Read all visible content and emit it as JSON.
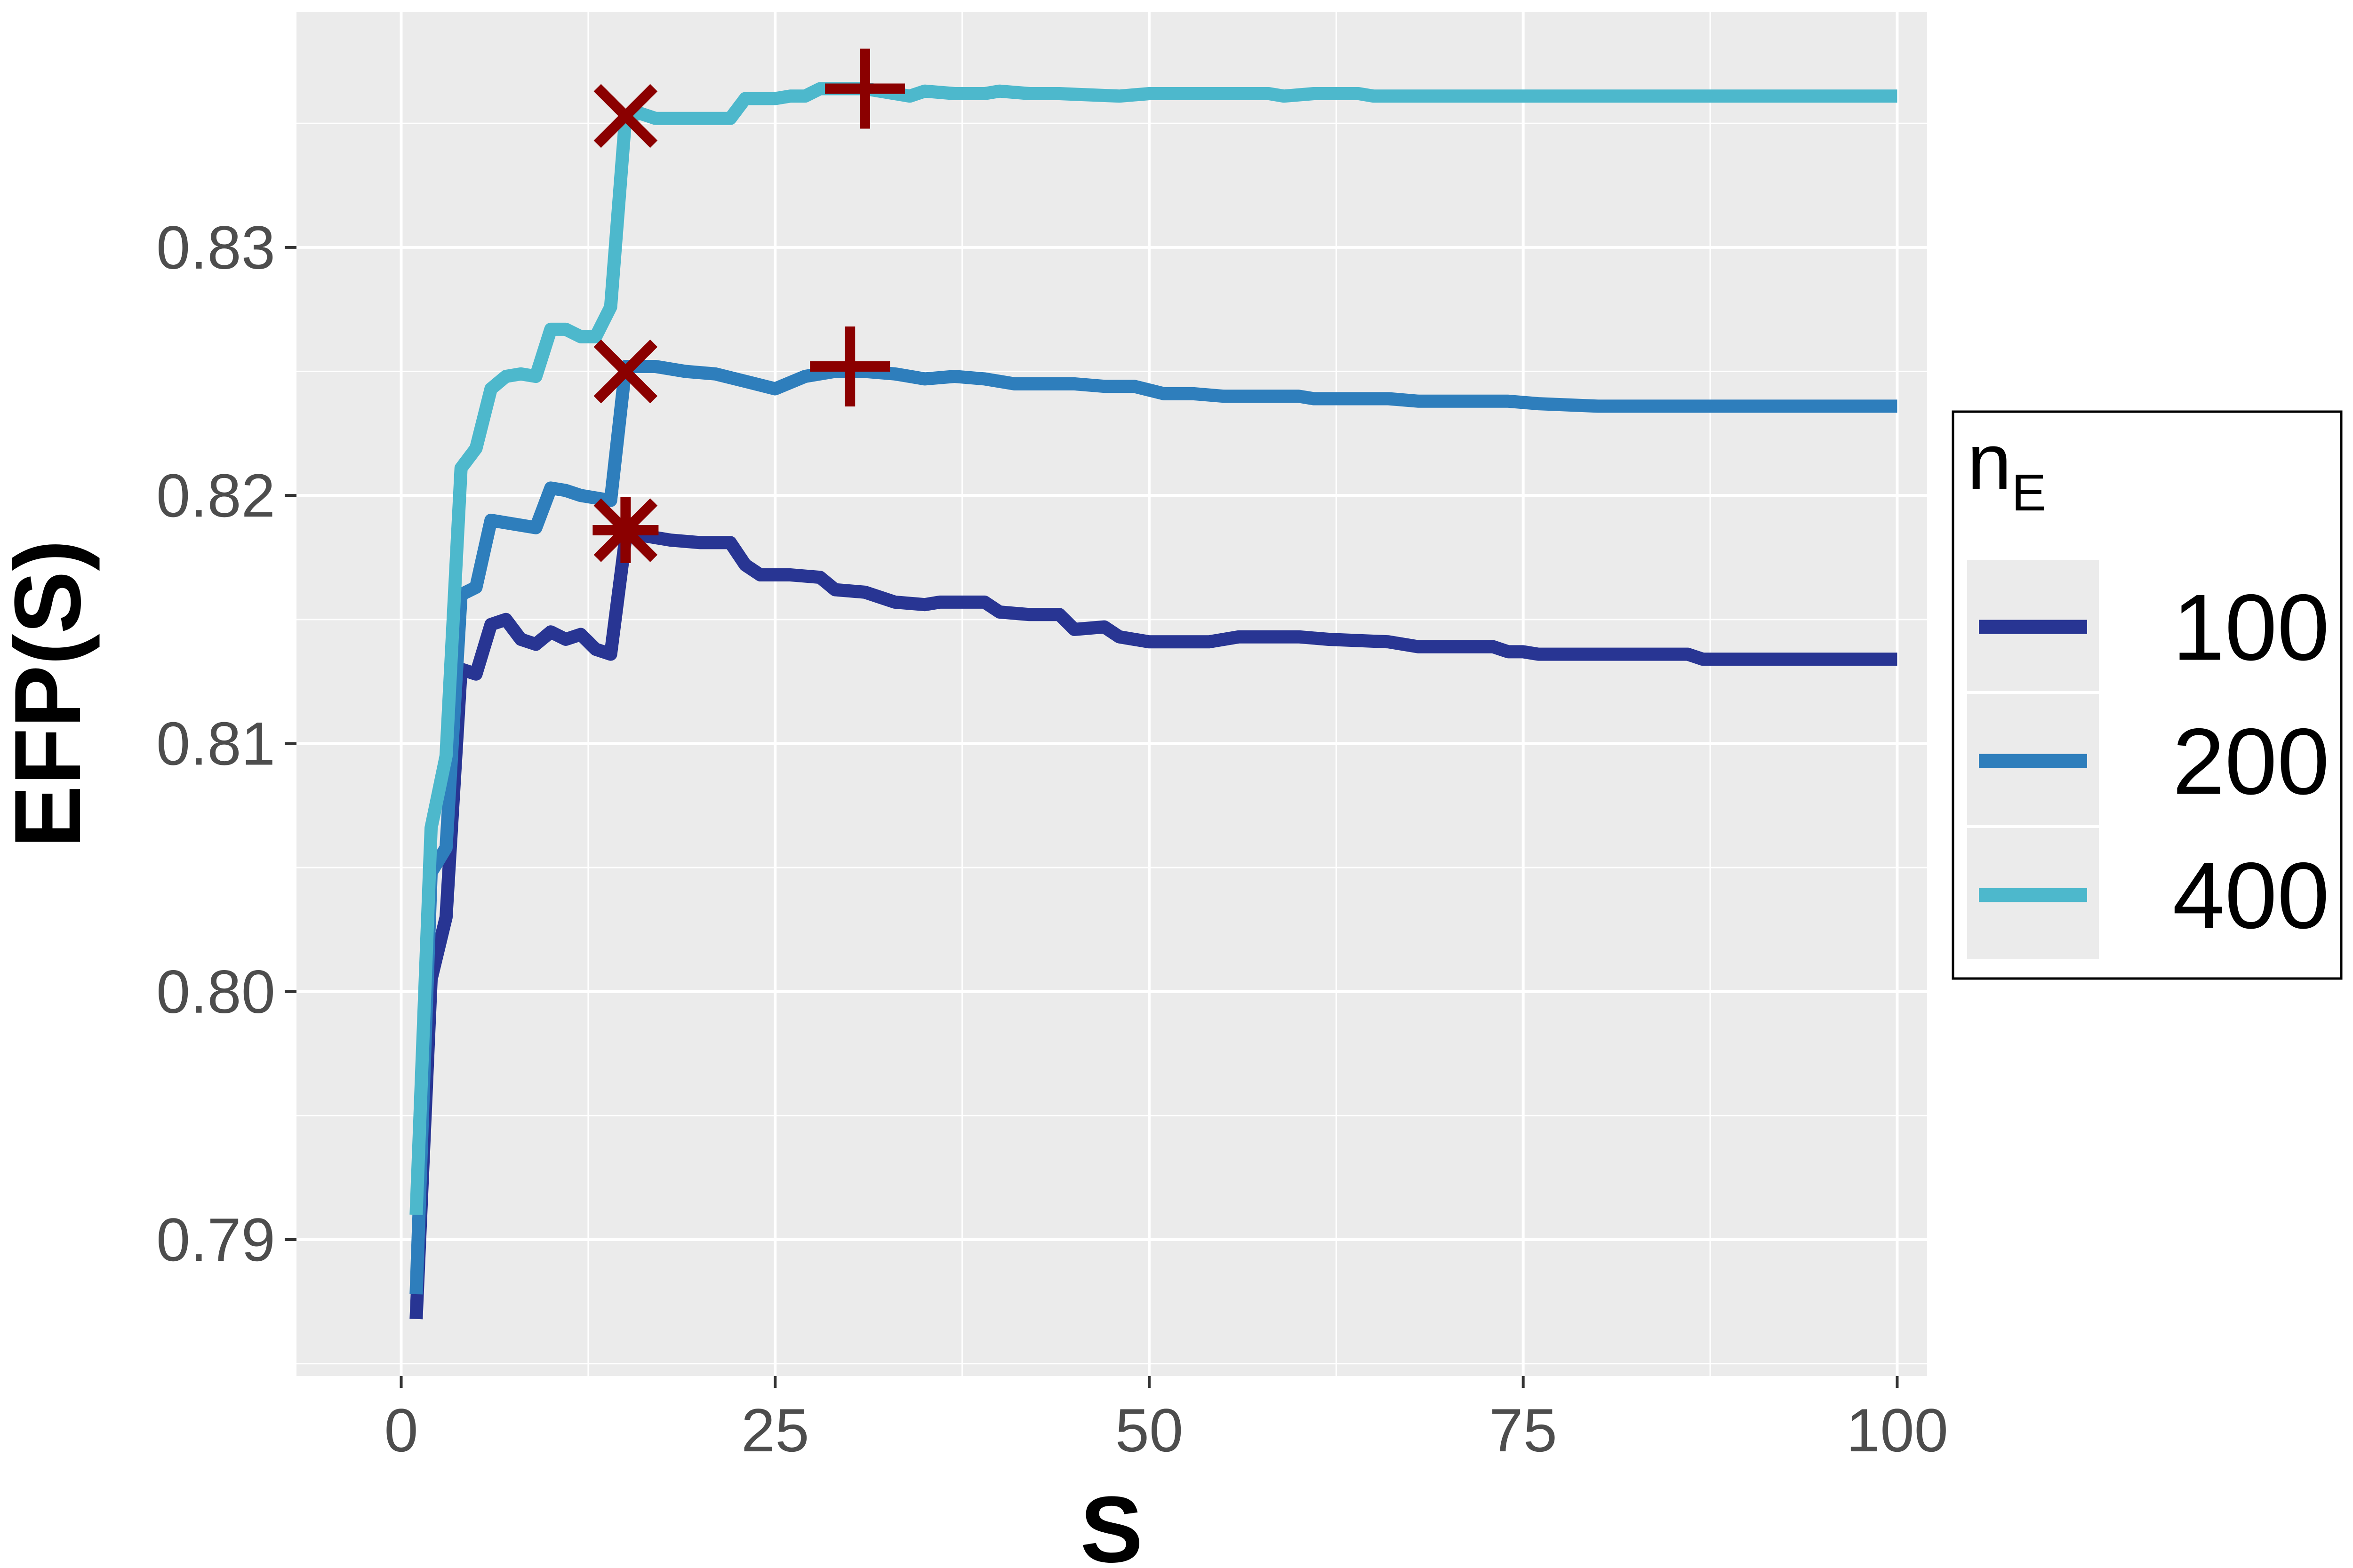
{
  "chart_data": {
    "type": "line",
    "xlabel": "S",
    "ylabel": "EFP(S)",
    "xlim": [
      -7,
      102
    ],
    "ylim": [
      0.7845,
      0.8395
    ],
    "x_ticks": [
      0,
      25,
      50,
      75,
      100
    ],
    "x_tick_labels": [
      "0",
      "25",
      "50",
      "75",
      "100"
    ],
    "y_ticks": [
      0.79,
      0.8,
      0.81,
      0.82,
      0.83
    ],
    "y_tick_labels": [
      "0.79",
      "0.80",
      "0.81",
      "0.82",
      "0.83"
    ],
    "grid": true,
    "legend": {
      "title_main": "n",
      "title_sub": "E",
      "placement": "right"
    },
    "series": [
      {
        "name": "100",
        "color": "#283593",
        "points": [
          [
            1,
            0.7868
          ],
          [
            2,
            0.8005
          ],
          [
            3,
            0.803
          ],
          [
            4,
            0.813
          ],
          [
            5,
            0.8128
          ],
          [
            6,
            0.8148
          ],
          [
            7,
            0.815
          ],
          [
            8,
            0.8142
          ],
          [
            9,
            0.814
          ],
          [
            10,
            0.8145
          ],
          [
            11,
            0.8142
          ],
          [
            12,
            0.8144
          ],
          [
            13,
            0.8138
          ],
          [
            14,
            0.8136
          ],
          [
            15,
            0.8183
          ],
          [
            16,
            0.8184
          ],
          [
            18,
            0.8182
          ],
          [
            20,
            0.8181
          ],
          [
            22,
            0.8181
          ],
          [
            23,
            0.8172
          ],
          [
            24,
            0.8168
          ],
          [
            26,
            0.8168
          ],
          [
            28,
            0.8167
          ],
          [
            29,
            0.8162
          ],
          [
            31,
            0.8161
          ],
          [
            33,
            0.8157
          ],
          [
            35,
            0.8156
          ],
          [
            36,
            0.8157
          ],
          [
            39,
            0.8157
          ],
          [
            40,
            0.8153
          ],
          [
            42,
            0.8152
          ],
          [
            44,
            0.8152
          ],
          [
            45,
            0.8146
          ],
          [
            47,
            0.8147
          ],
          [
            48,
            0.8143
          ],
          [
            50,
            0.8141
          ],
          [
            54,
            0.8141
          ],
          [
            56,
            0.8143
          ],
          [
            58,
            0.8143
          ],
          [
            60,
            0.8143
          ],
          [
            62,
            0.8142
          ],
          [
            66,
            0.8141
          ],
          [
            68,
            0.8139
          ],
          [
            73,
            0.8139
          ],
          [
            74,
            0.8137
          ],
          [
            75,
            0.8137
          ],
          [
            76,
            0.8136
          ],
          [
            80,
            0.8136
          ],
          [
            86,
            0.8136
          ],
          [
            87,
            0.8134
          ],
          [
            88,
            0.8134
          ],
          [
            100,
            0.8134
          ]
        ]
      },
      {
        "name": "200",
        "color": "#2e7ebc",
        "points": [
          [
            1,
            0.7878
          ],
          [
            2,
            0.8048
          ],
          [
            3,
            0.8058
          ],
          [
            4,
            0.816
          ],
          [
            5,
            0.8163
          ],
          [
            6,
            0.819
          ],
          [
            7,
            0.8189
          ],
          [
            9,
            0.8187
          ],
          [
            10,
            0.8203
          ],
          [
            11,
            0.8202
          ],
          [
            12,
            0.82
          ],
          [
            14,
            0.8198
          ],
          [
            15,
            0.8252
          ],
          [
            17,
            0.8252
          ],
          [
            19,
            0.825
          ],
          [
            21,
            0.8249
          ],
          [
            23,
            0.8246
          ],
          [
            25,
            0.8243
          ],
          [
            27,
            0.8248
          ],
          [
            29,
            0.825
          ],
          [
            31,
            0.825
          ],
          [
            33,
            0.8249
          ],
          [
            35,
            0.8247
          ],
          [
            37,
            0.8248
          ],
          [
            39,
            0.8247
          ],
          [
            41,
            0.8245
          ],
          [
            45,
            0.8245
          ],
          [
            47,
            0.8244
          ],
          [
            49,
            0.8244
          ],
          [
            51,
            0.8241
          ],
          [
            53,
            0.8241
          ],
          [
            55,
            0.824
          ],
          [
            60,
            0.824
          ],
          [
            61,
            0.8239
          ],
          [
            66,
            0.8239
          ],
          [
            68,
            0.8238
          ],
          [
            74,
            0.8238
          ],
          [
            76,
            0.8237
          ],
          [
            80,
            0.8236
          ],
          [
            100,
            0.8236
          ]
        ]
      },
      {
        "name": "400",
        "color": "#4db8cc",
        "points": [
          [
            1,
            0.791
          ],
          [
            2,
            0.8066
          ],
          [
            3,
            0.8095
          ],
          [
            4,
            0.8211
          ],
          [
            5,
            0.8219
          ],
          [
            6,
            0.8243
          ],
          [
            7,
            0.8248
          ],
          [
            8,
            0.8249
          ],
          [
            9,
            0.8248
          ],
          [
            10,
            0.8267
          ],
          [
            11,
            0.8267
          ],
          [
            12,
            0.8264
          ],
          [
            13,
            0.8264
          ],
          [
            14,
            0.8276
          ],
          [
            15,
            0.8353
          ],
          [
            16,
            0.8354
          ],
          [
            17,
            0.8352
          ],
          [
            18,
            0.8352
          ],
          [
            22,
            0.8352
          ],
          [
            23,
            0.836
          ],
          [
            25,
            0.836
          ],
          [
            26,
            0.8361
          ],
          [
            27,
            0.8361
          ],
          [
            28,
            0.8364
          ],
          [
            30,
            0.8364
          ],
          [
            31,
            0.8364
          ],
          [
            33,
            0.8362
          ],
          [
            34,
            0.8361
          ],
          [
            35,
            0.8363
          ],
          [
            37,
            0.8362
          ],
          [
            39,
            0.8362
          ],
          [
            40,
            0.8363
          ],
          [
            42,
            0.8362
          ],
          [
            44,
            0.8362
          ],
          [
            48,
            0.8361
          ],
          [
            50,
            0.8362
          ],
          [
            58,
            0.8362
          ],
          [
            59,
            0.8361
          ],
          [
            61,
            0.8362
          ],
          [
            64,
            0.8362
          ],
          [
            65,
            0.8361
          ],
          [
            100,
            0.8361
          ]
        ]
      }
    ],
    "markers": [
      {
        "shape": "x",
        "x": 15,
        "y": 0.8353,
        "color": "#8b0000"
      },
      {
        "shape": "plus",
        "x": 31,
        "y": 0.8364,
        "color": "#8b0000"
      },
      {
        "shape": "x",
        "x": 15,
        "y": 0.825,
        "color": "#8b0000"
      },
      {
        "shape": "plus",
        "x": 30,
        "y": 0.8252,
        "color": "#8b0000"
      },
      {
        "shape": "asterisk",
        "x": 15,
        "y": 0.8186,
        "color": "#8b0000"
      }
    ],
    "panel_color": "#ebebeb",
    "grid_color": "#ffffff"
  }
}
